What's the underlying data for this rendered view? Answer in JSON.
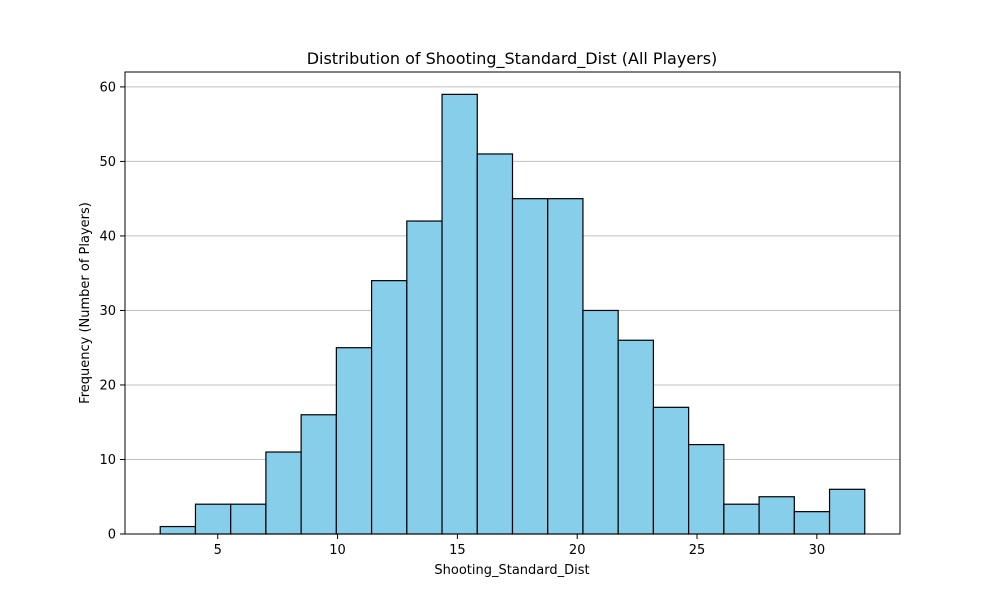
{
  "chart_data": {
    "type": "bar",
    "title": "Distribution of Shooting_Standard_Dist (All Players)",
    "xlabel": "Shooting_Standard_Dist",
    "ylabel": "Frequency (Number of Players)",
    "bin_edges": [
      2.6,
      4.07,
      5.54,
      7.01,
      8.48,
      9.95,
      11.42,
      12.89,
      14.36,
      15.83,
      17.3,
      18.77,
      20.24,
      21.71,
      23.18,
      24.65,
      26.12,
      27.59,
      29.06,
      30.53,
      32.0
    ],
    "values": [
      1,
      4,
      4,
      11,
      16,
      25,
      34,
      42,
      59,
      51,
      45,
      45,
      30,
      26,
      17,
      12,
      4,
      5,
      3,
      6
    ],
    "xlim": [
      1.13,
      33.47
    ],
    "ylim": [
      0,
      62
    ],
    "xticks": [
      5,
      10,
      15,
      20,
      25,
      30
    ],
    "yticks": [
      0,
      10,
      20,
      30,
      40,
      50,
      60
    ],
    "grid": "horizontal",
    "bar_color": "#87CEEB",
    "edge_color": "#000000",
    "grid_color": "#c0c0c0"
  }
}
